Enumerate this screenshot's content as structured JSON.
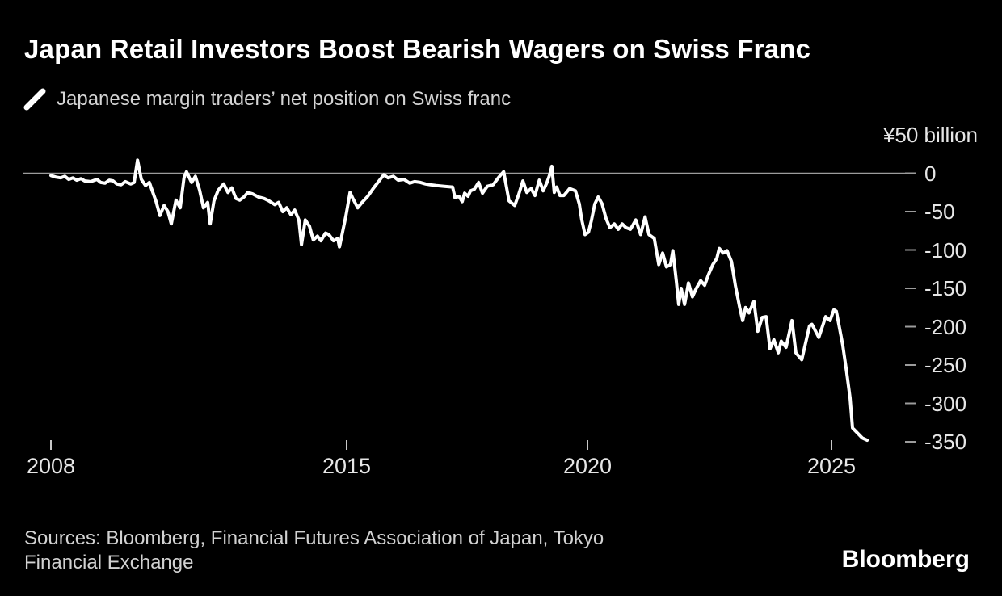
{
  "colors": {
    "background": "#000000",
    "series_line": "#ffffff",
    "zero_line": "#9c9c9c",
    "tick_dash": "#9c9c9c",
    "x_tick_dash": "#c8c8c8",
    "axis_text": "#e6e6e6",
    "secondary_text": "#d2d2d2",
    "title_text": "#ffffff"
  },
  "footer": {
    "sources_lines": [
      "Sources: Bloomberg, Financial Futures Association of Japan, Tokyo",
      "Financial Exchange"
    ],
    "brand": "Bloomberg"
  },
  "chart_data": {
    "type": "line",
    "title": "Japan Retail Investors Boost Bearish Wagers on Swiss Franc",
    "series_label": "Japanese margin traders’ net position on Swiss franc",
    "unit_label": "¥50 billion",
    "legend_marker": "line-sample-slash",
    "grid": "zero-line-only",
    "legend_position": "top-left",
    "xlabel": "",
    "ylabel": "¥ billion",
    "x_tick_labels": [
      "2008",
      "2015",
      "2020",
      "2025"
    ],
    "x_tick_years": [
      2008,
      2015,
      2020,
      2025
    ],
    "y_tick_labels": [
      "0",
      "-50",
      "-100",
      "-150",
      "-200",
      "-250",
      "-300",
      "-350"
    ],
    "y_tick_values": [
      0,
      -50,
      -100,
      -150,
      -200,
      -250,
      -300,
      -350
    ],
    "xlim": [
      2008,
      2025.9
    ],
    "ylim": [
      -350,
      20
    ],
    "points": [
      [
        2008.0,
        -3
      ],
      [
        2008.12,
        -5
      ],
      [
        2008.23,
        -6
      ],
      [
        2008.33,
        -4
      ],
      [
        2008.42,
        -8
      ],
      [
        2008.52,
        -6
      ],
      [
        2008.61,
        -9
      ],
      [
        2008.71,
        -7
      ],
      [
        2008.8,
        -10
      ],
      [
        2008.94,
        -11
      ],
      [
        2009.09,
        -8
      ],
      [
        2009.18,
        -12
      ],
      [
        2009.28,
        -13
      ],
      [
        2009.38,
        -9
      ],
      [
        2009.47,
        -10
      ],
      [
        2009.56,
        -14
      ],
      [
        2009.66,
        -15
      ],
      [
        2009.76,
        -11
      ],
      [
        2009.89,
        -14
      ],
      [
        2009.97,
        -12
      ],
      [
        2010.05,
        17
      ],
      [
        2010.14,
        -8
      ],
      [
        2010.24,
        -16
      ],
      [
        2010.33,
        -12
      ],
      [
        2010.49,
        -37
      ],
      [
        2010.58,
        -55
      ],
      [
        2010.68,
        -42
      ],
      [
        2010.77,
        -50
      ],
      [
        2010.85,
        -66
      ],
      [
        2010.96,
        -35
      ],
      [
        2011.06,
        -45
      ],
      [
        2011.15,
        -6
      ],
      [
        2011.21,
        2
      ],
      [
        2011.33,
        -12
      ],
      [
        2011.42,
        -4
      ],
      [
        2011.52,
        -22
      ],
      [
        2011.61,
        -45
      ],
      [
        2011.71,
        -38
      ],
      [
        2011.77,
        -66
      ],
      [
        2011.86,
        -36
      ],
      [
        2011.96,
        -22
      ],
      [
        2012.09,
        -14
      ],
      [
        2012.19,
        -25
      ],
      [
        2012.28,
        -19
      ],
      [
        2012.38,
        -33
      ],
      [
        2012.47,
        -35
      ],
      [
        2012.57,
        -31
      ],
      [
        2012.66,
        -25
      ],
      [
        2012.78,
        -27
      ],
      [
        2012.91,
        -31
      ],
      [
        2013.05,
        -33
      ],
      [
        2013.16,
        -36
      ],
      [
        2013.3,
        -41
      ],
      [
        2013.39,
        -38
      ],
      [
        2013.49,
        -50
      ],
      [
        2013.58,
        -45
      ],
      [
        2013.68,
        -54
      ],
      [
        2013.77,
        -48
      ],
      [
        2013.87,
        -61
      ],
      [
        2013.93,
        -93
      ],
      [
        2014.02,
        -61
      ],
      [
        2014.12,
        -69
      ],
      [
        2014.21,
        -87
      ],
      [
        2014.31,
        -82
      ],
      [
        2014.39,
        -88
      ],
      [
        2014.5,
        -78
      ],
      [
        2014.58,
        -80
      ],
      [
        2014.69,
        -88
      ],
      [
        2014.79,
        -85
      ],
      [
        2014.83,
        -96
      ],
      [
        2014.98,
        -56
      ],
      [
        2015.07,
        -25
      ],
      [
        2015.13,
        -33
      ],
      [
        2015.23,
        -45
      ],
      [
        2015.32,
        -38
      ],
      [
        2015.44,
        -30
      ],
      [
        2015.55,
        -20
      ],
      [
        2015.65,
        -12
      ],
      [
        2015.77,
        -2
      ],
      [
        2015.86,
        -6
      ],
      [
        2015.97,
        -4
      ],
      [
        2016.07,
        -9
      ],
      [
        2016.19,
        -8
      ],
      [
        2016.31,
        -13
      ],
      [
        2016.41,
        -11
      ],
      [
        2016.53,
        -12
      ],
      [
        2016.64,
        -14
      ],
      [
        2016.74,
        -15
      ],
      [
        2016.86,
        -16
      ],
      [
        2017.03,
        -17
      ],
      [
        2017.2,
        -18
      ],
      [
        2017.25,
        -32
      ],
      [
        2017.33,
        -30
      ],
      [
        2017.4,
        -37
      ],
      [
        2017.45,
        -26
      ],
      [
        2017.52,
        -30
      ],
      [
        2017.57,
        -23
      ],
      [
        2017.65,
        -21
      ],
      [
        2017.74,
        -12
      ],
      [
        2017.82,
        -26
      ],
      [
        2017.92,
        -17
      ],
      [
        2018.04,
        -15
      ],
      [
        2018.16,
        -5
      ],
      [
        2018.26,
        2
      ],
      [
        2018.37,
        -36
      ],
      [
        2018.49,
        -42
      ],
      [
        2018.57,
        -28
      ],
      [
        2018.66,
        -10
      ],
      [
        2018.74,
        -25
      ],
      [
        2018.83,
        -20
      ],
      [
        2018.91,
        -29
      ],
      [
        2019.0,
        -9
      ],
      [
        2019.08,
        -23
      ],
      [
        2019.16,
        -12
      ],
      [
        2019.21,
        -3
      ],
      [
        2019.26,
        9
      ],
      [
        2019.31,
        -25
      ],
      [
        2019.36,
        -18
      ],
      [
        2019.43,
        -29
      ],
      [
        2019.51,
        -29
      ],
      [
        2019.63,
        -20
      ],
      [
        2019.75,
        -23
      ],
      [
        2019.83,
        -40
      ],
      [
        2019.88,
        -60
      ],
      [
        2019.95,
        -80
      ],
      [
        2020.02,
        -77
      ],
      [
        2020.08,
        -62
      ],
      [
        2020.15,
        -40
      ],
      [
        2020.22,
        -31
      ],
      [
        2020.3,
        -40
      ],
      [
        2020.38,
        -59
      ],
      [
        2020.46,
        -71
      ],
      [
        2020.55,
        -66
      ],
      [
        2020.63,
        -73
      ],
      [
        2020.71,
        -66
      ],
      [
        2020.79,
        -71
      ],
      [
        2020.88,
        -73
      ],
      [
        2020.99,
        -61
      ],
      [
        2021.09,
        -80
      ],
      [
        2021.18,
        -57
      ],
      [
        2021.26,
        -80
      ],
      [
        2021.37,
        -85
      ],
      [
        2021.46,
        -119
      ],
      [
        2021.54,
        -104
      ],
      [
        2021.62,
        -122
      ],
      [
        2021.7,
        -119
      ],
      [
        2021.75,
        -101
      ],
      [
        2021.82,
        -140
      ],
      [
        2021.87,
        -171
      ],
      [
        2021.92,
        -150
      ],
      [
        2021.99,
        -171
      ],
      [
        2022.07,
        -143
      ],
      [
        2022.15,
        -161
      ],
      [
        2022.23,
        -150
      ],
      [
        2022.32,
        -140
      ],
      [
        2022.4,
        -146
      ],
      [
        2022.48,
        -132
      ],
      [
        2022.57,
        -119
      ],
      [
        2022.65,
        -111
      ],
      [
        2022.7,
        -98
      ],
      [
        2022.78,
        -104
      ],
      [
        2022.86,
        -101
      ],
      [
        2022.95,
        -115
      ],
      [
        2023.03,
        -146
      ],
      [
        2023.12,
        -175
      ],
      [
        2023.18,
        -192
      ],
      [
        2023.24,
        -175
      ],
      [
        2023.31,
        -182
      ],
      [
        2023.41,
        -167
      ],
      [
        2023.49,
        -206
      ],
      [
        2023.58,
        -188
      ],
      [
        2023.66,
        -187
      ],
      [
        2023.74,
        -229
      ],
      [
        2023.82,
        -217
      ],
      [
        2023.91,
        -234
      ],
      [
        2023.97,
        -219
      ],
      [
        2024.07,
        -227
      ],
      [
        2024.19,
        -192
      ],
      [
        2024.27,
        -234
      ],
      [
        2024.39,
        -243
      ],
      [
        2024.55,
        -199
      ],
      [
        2024.6,
        -197
      ],
      [
        2024.74,
        -214
      ],
      [
        2024.88,
        -187
      ],
      [
        2024.97,
        -192
      ],
      [
        2025.05,
        -178
      ],
      [
        2025.1,
        -180
      ],
      [
        2025.23,
        -224
      ],
      [
        2025.31,
        -259
      ],
      [
        2025.38,
        -293
      ],
      [
        2025.43,
        -332
      ],
      [
        2025.63,
        -345
      ],
      [
        2025.73,
        -348
      ]
    ]
  }
}
